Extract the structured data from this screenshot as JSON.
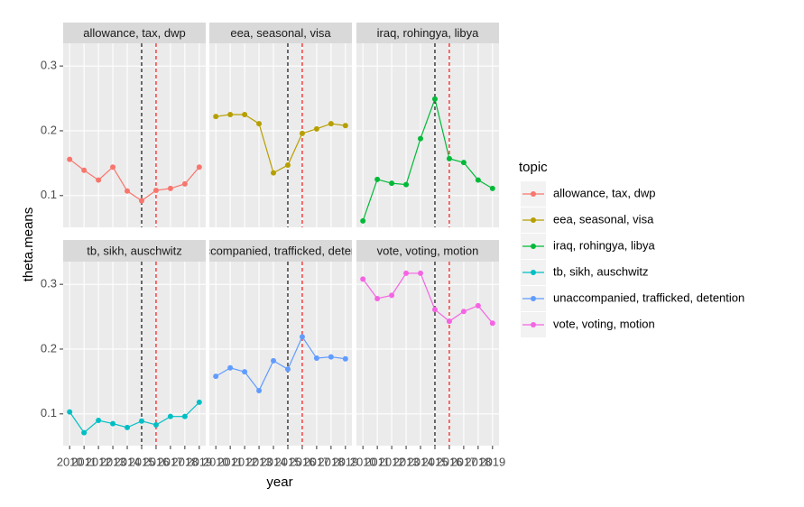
{
  "chart_data": {
    "type": "line",
    "x": [
      2010,
      2011,
      2012,
      2013,
      2014,
      2015,
      2016,
      2017,
      2018,
      2019
    ],
    "series": [
      {
        "name": "allowance, tax, dwp",
        "color": "#F8766D",
        "values": [
          0.156,
          0.139,
          0.124,
          0.144,
          0.107,
          0.092,
          0.108,
          0.111,
          0.118,
          0.144
        ]
      },
      {
        "name": "eea, seasonal, visa",
        "color": "#B79F00",
        "values": [
          0.222,
          0.225,
          0.225,
          0.211,
          0.135,
          0.147,
          0.196,
          0.203,
          0.211,
          0.208
        ]
      },
      {
        "name": "iraq, rohingya, libya",
        "color": "#00BA38",
        "values": [
          0.061,
          0.125,
          0.119,
          0.117,
          0.188,
          0.249,
          0.157,
          0.151,
          0.124,
          0.111
        ]
      },
      {
        "name": "tb, sikh, auschwitz",
        "color": "#00BFC4",
        "values": [
          0.103,
          0.071,
          0.09,
          0.085,
          0.079,
          0.089,
          0.083,
          0.096,
          0.096,
          0.118
        ]
      },
      {
        "name": "unaccompanied, trafficked, detention",
        "color": "#619CFF",
        "values": [
          0.158,
          0.171,
          0.165,
          0.136,
          0.182,
          0.169,
          0.219,
          0.186,
          0.188,
          0.185
        ]
      },
      {
        "name": "vote, voting, motion",
        "color": "#F564E3",
        "values": [
          0.308,
          0.278,
          0.283,
          0.317,
          0.317,
          0.261,
          0.243,
          0.258,
          0.267,
          0.24
        ]
      }
    ],
    "xlim": [
      2009.55,
      2019.45
    ],
    "xticks": [
      2010,
      2011,
      2012,
      2013,
      2014,
      2015,
      2016,
      2017,
      2018,
      2019
    ],
    "ylim": [
      0.051,
      0.335
    ],
    "yticks": [
      0.1,
      0.2,
      0.3
    ],
    "xlabel": "year",
    "ylabel": "theta.means",
    "legend_title": "topic",
    "vlines": [
      {
        "x": 2015,
        "color": "#000000"
      },
      {
        "x": 2016,
        "color": "#FF0000"
      }
    ],
    "grid": true
  }
}
